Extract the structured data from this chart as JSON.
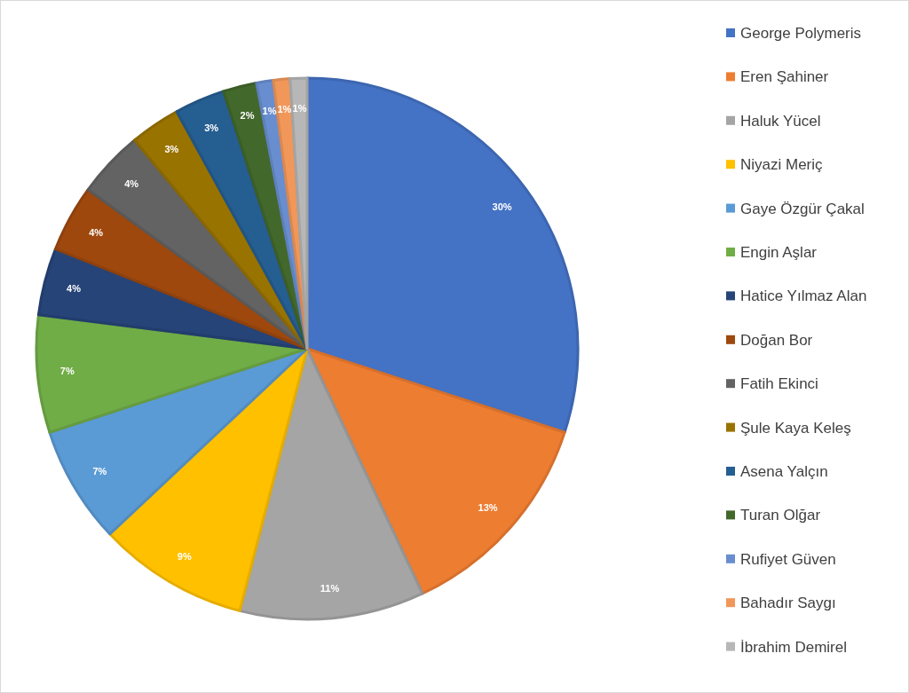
{
  "chart_data": {
    "type": "pie",
    "categories": [
      "George Polymeris",
      "Eren Şahiner",
      "Haluk Yücel",
      "Niyazi Meriç",
      "Gaye Özgür Çakal",
      "Engin Aşlar",
      "Hatice Yılmaz Alan",
      "Doğan Bor",
      "Fatih Ekinci",
      "Şule Kaya Keleş",
      "Asena Yalçın",
      "Turan Olğar",
      "Rufiyet Güven",
      "Bahadır Saygı",
      "İbrahim Demirel"
    ],
    "values": [
      30,
      13,
      11,
      9,
      7,
      7,
      4,
      4,
      4,
      3,
      3,
      2,
      1,
      1,
      1
    ],
    "value_labels": [
      "30%",
      "13%",
      "11%",
      "9%",
      "7%",
      "7%",
      "4%",
      "4%",
      "4%",
      "3%",
      "3%",
      "2%",
      "1%",
      "1%",
      "1%"
    ],
    "colors": [
      "#4472c4",
      "#ed7d31",
      "#a5a5a5",
      "#ffc000",
      "#5b9bd5",
      "#70ad47",
      "#264478",
      "#9e480e",
      "#636363",
      "#997300",
      "#255e91",
      "#43682b",
      "#698ed0",
      "#f1975a",
      "#b7b7b7"
    ],
    "legend": "right"
  }
}
